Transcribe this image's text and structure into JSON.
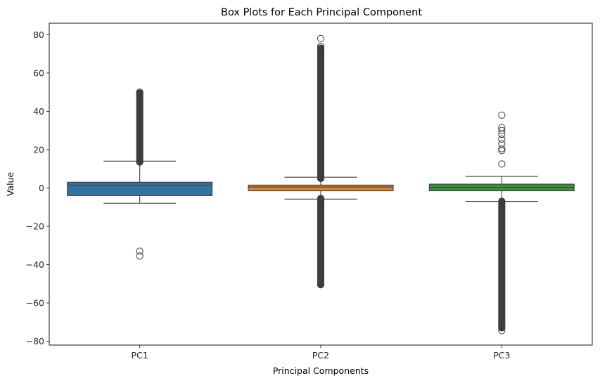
{
  "chart_data": {
    "type": "box",
    "title": "Box Plots for Each Principal Component",
    "xlabel": "Principal Components",
    "ylabel": "Value",
    "ylim": [
      -82,
      86
    ],
    "yticks": [
      -80,
      -60,
      -40,
      -20,
      0,
      20,
      40,
      60,
      80
    ],
    "ytick_labels": [
      "−80",
      "−60",
      "−40",
      "−20",
      "0",
      "20",
      "40",
      "60",
      "80"
    ],
    "grid": false,
    "categories": [
      "PC1",
      "PC2",
      "PC3"
    ],
    "boxes": [
      {
        "name": "PC1",
        "color": "#3274a1",
        "q1": -4,
        "median": 1.5,
        "q3": 3,
        "whisker_low": -8,
        "whisker_high": 14,
        "outlier_bands": [
          [
            13.5,
            49.5
          ]
        ],
        "outliers": [
          50,
          -33,
          -35.5
        ]
      },
      {
        "name": "PC2",
        "color": "#e1812c",
        "q1": -1.5,
        "median": 0.5,
        "q3": 1.5,
        "whisker_low": -5.8,
        "whisker_high": 5.6,
        "outlier_bands": [
          [
            5,
            73
          ],
          [
            -50.5,
            -5.5
          ]
        ],
        "outliers": [
          74,
          78
        ]
      },
      {
        "name": "PC3",
        "color": "#3a923a",
        "q1": -1.5,
        "median": 0.3,
        "q3": 2,
        "whisker_low": -7,
        "whisker_high": 6,
        "outlier_bands": [
          [
            -73,
            -7
          ]
        ],
        "outliers": [
          -74.5,
          38,
          31.5,
          30,
          28,
          25.5,
          23,
          20.5,
          19.5,
          12.5
        ]
      }
    ]
  }
}
